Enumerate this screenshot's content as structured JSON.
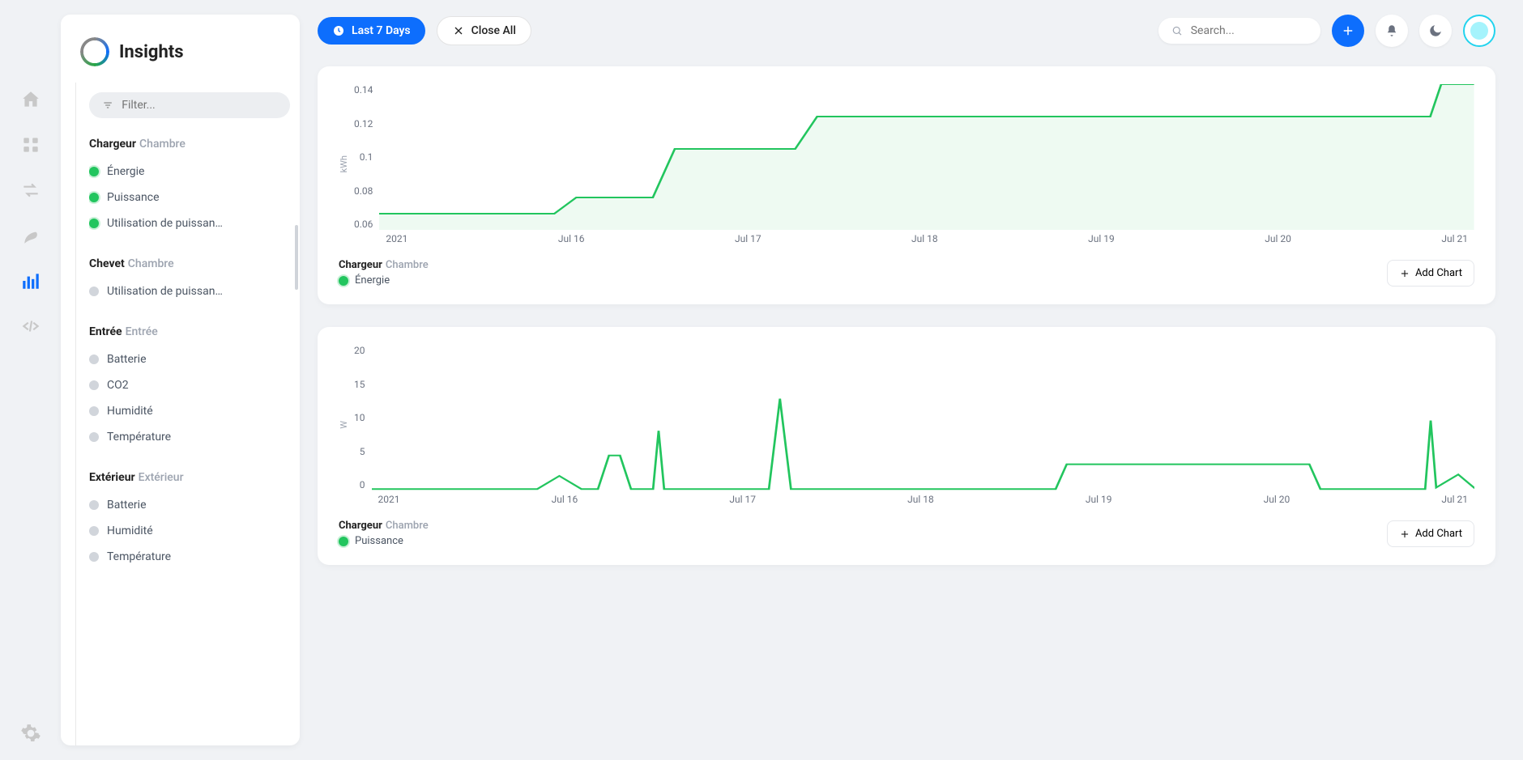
{
  "page_title": "Insights",
  "background_color": "#f0f2f5",
  "accent_color": "#0d6efd",
  "series_color": "#22c55e",
  "icon_rail": {
    "items": [
      {
        "name": "home",
        "active": false
      },
      {
        "name": "apps",
        "active": false
      },
      {
        "name": "flows",
        "active": false
      },
      {
        "name": "energy",
        "active": false
      },
      {
        "name": "insights",
        "active": true
      },
      {
        "name": "developer",
        "active": false
      }
    ],
    "bottom": {
      "name": "settings"
    }
  },
  "filter": {
    "placeholder": "Filter..."
  },
  "sidebar_groups": [
    {
      "device": "Chargeur",
      "room": "Chambre",
      "metrics": [
        {
          "label": "Énergie",
          "on": true
        },
        {
          "label": "Puissance",
          "on": true
        },
        {
          "label": "Utilisation de puissan…",
          "on": true
        }
      ]
    },
    {
      "device": "Chevet",
      "room": "Chambre",
      "metrics": [
        {
          "label": "Utilisation de puissan…",
          "on": false
        }
      ]
    },
    {
      "device": "Entrée",
      "room": "Entrée",
      "metrics": [
        {
          "label": "Batterie",
          "on": false
        },
        {
          "label": "CO2",
          "on": false
        },
        {
          "label": "Humidité",
          "on": false
        },
        {
          "label": "Température",
          "on": false
        }
      ]
    },
    {
      "device": "Extérieur",
      "room": "Extérieur",
      "metrics": [
        {
          "label": "Batterie",
          "on": false
        },
        {
          "label": "Humidité",
          "on": false
        },
        {
          "label": "Température",
          "on": false
        }
      ]
    }
  ],
  "topbar": {
    "range_label": "Last 7 Days",
    "close_all_label": "Close All",
    "search_placeholder": "Search..."
  },
  "add_chart_label": "Add Chart",
  "charts": [
    {
      "type": "area",
      "y_unit": "kWh",
      "y_ticks": [
        "0.14",
        "0.12",
        "0.1",
        "0.08",
        "0.06"
      ],
      "ylim": [
        0.06,
        0.15
      ],
      "x_labels": [
        "2021",
        "Jul 16",
        "Jul 17",
        "Jul 18",
        "Jul 19",
        "Jul 20",
        "Jul 21"
      ],
      "line_color": "#22c55e",
      "fill_color": "rgba(34,197,94,0.08)",
      "line_width": 2,
      "device": "Chargeur",
      "room": "Chambre",
      "series_label": "Énergie",
      "data": [
        {
          "x": 0.0,
          "y": 0.07
        },
        {
          "x": 0.16,
          "y": 0.07
        },
        {
          "x": 0.18,
          "y": 0.08
        },
        {
          "x": 0.25,
          "y": 0.08
        },
        {
          "x": 0.27,
          "y": 0.11
        },
        {
          "x": 0.38,
          "y": 0.11
        },
        {
          "x": 0.4,
          "y": 0.13
        },
        {
          "x": 0.96,
          "y": 0.13
        },
        {
          "x": 0.97,
          "y": 0.15
        },
        {
          "x": 1.0,
          "y": 0.15
        }
      ]
    },
    {
      "type": "line",
      "y_unit": "W",
      "y_ticks": [
        "20",
        "15",
        "10",
        "5",
        "0"
      ],
      "ylim": [
        0,
        20
      ],
      "x_labels": [
        "2021",
        "Jul 16",
        "Jul 17",
        "Jul 18",
        "Jul 19",
        "Jul 20",
        "Jul 21"
      ],
      "line_color": "#22c55e",
      "line_width": 2,
      "device": "Chargeur",
      "room": "Chambre",
      "series_label": "Puissance",
      "data": [
        {
          "x": 0.0,
          "y": 0.2
        },
        {
          "x": 0.15,
          "y": 0.2
        },
        {
          "x": 0.17,
          "y": 2.0
        },
        {
          "x": 0.19,
          "y": 0.2
        },
        {
          "x": 0.205,
          "y": 0.2
        },
        {
          "x": 0.215,
          "y": 4.8
        },
        {
          "x": 0.225,
          "y": 4.8
        },
        {
          "x": 0.235,
          "y": 0.2
        },
        {
          "x": 0.255,
          "y": 0.2
        },
        {
          "x": 0.26,
          "y": 8.2
        },
        {
          "x": 0.265,
          "y": 0.2
        },
        {
          "x": 0.36,
          "y": 0.2
        },
        {
          "x": 0.37,
          "y": 12.6
        },
        {
          "x": 0.38,
          "y": 0.2
        },
        {
          "x": 0.62,
          "y": 0.2
        },
        {
          "x": 0.63,
          "y": 3.6
        },
        {
          "x": 0.85,
          "y": 3.6
        },
        {
          "x": 0.86,
          "y": 0.2
        },
        {
          "x": 0.955,
          "y": 0.2
        },
        {
          "x": 0.96,
          "y": 9.6
        },
        {
          "x": 0.965,
          "y": 0.4
        },
        {
          "x": 0.985,
          "y": 2.2
        },
        {
          "x": 1.0,
          "y": 0.3
        }
      ]
    }
  ]
}
